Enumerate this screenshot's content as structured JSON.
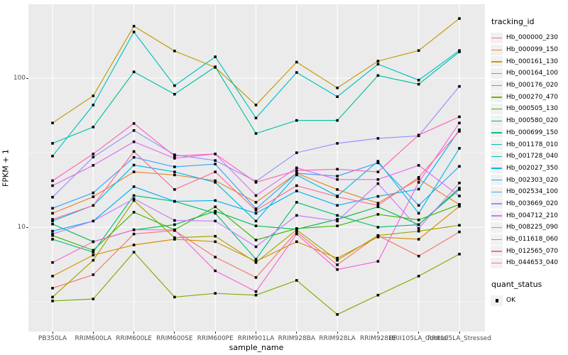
{
  "figure": {
    "panel_background": "#EBEBEB",
    "grid_color": "#FFFFFF",
    "axis_text_color": "#4D4D4D",
    "marker_color": "#000000"
  },
  "axes": {
    "x_title": "sample_name",
    "y_title": "FPKM + 1",
    "y_scale": "log10",
    "y_major_ticks": [
      {
        "label": "100",
        "value": 100
      },
      {
        "label": "10",
        "value": 10
      }
    ],
    "y_minor_breaks": [
      316.23,
      31.62,
      3.162
    ]
  },
  "legend": {
    "tracking_title": "tracking_id",
    "quant_title": "quant_status",
    "quant_items": [
      {
        "label": "OK",
        "marker": "black-square"
      }
    ]
  },
  "chart_data": {
    "type": "line",
    "title": "",
    "xlabel": "sample_name",
    "ylabel": "FPKM + 1",
    "y_scale": "log10",
    "ylim": [
      2,
      313
    ],
    "grid": true,
    "legend_position": "right",
    "marker": "black-square (quant_status OK)",
    "categories": [
      "PB350LA",
      "RRIM600LA",
      "RRIM600LE",
      "RRIM600SE",
      "RRIM600PE",
      "RRIM901LA",
      "RRIM928BA",
      "RRIM928LA",
      "RRIM928LE",
      "RRII105LA_Control",
      "RRII105LA_Stressed"
    ],
    "series": [
      {
        "name": "Hb_000000_230",
        "color": "#F8766D",
        "values": [
          3.9,
          4.8,
          9.0,
          9.5,
          6.3,
          4.6,
          9.3,
          5.6,
          8.8,
          6.4,
          9.3
        ]
      },
      {
        "name": "Hb_000099_150",
        "color": "#EA8331",
        "values": [
          12.4,
          16.0,
          23.5,
          22.4,
          20.5,
          14.7,
          23.0,
          17.9,
          14.5,
          21.0,
          14.2
        ]
      },
      {
        "name": "Hb_000161_130",
        "color": "#D89000",
        "values": [
          4.7,
          6.5,
          7.6,
          8.3,
          8.0,
          5.9,
          8.0,
          6.2,
          8.6,
          8.3,
          13.8
        ]
      },
      {
        "name": "Hb_000164_100",
        "color": "#C09B00",
        "values": [
          50,
          76,
          223,
          152,
          118,
          66,
          128,
          86,
          130,
          153,
          251
        ]
      },
      {
        "name": "Hb_000176_020",
        "color": "#A3A500",
        "values": [
          3.4,
          6.0,
          15.1,
          8.5,
          8.7,
          5.8,
          9.6,
          6.0,
          8.8,
          9.4,
          10.3
        ]
      },
      {
        "name": "Hb_000270_470",
        "color": "#7CAE00",
        "values": [
          3.2,
          3.3,
          6.8,
          3.4,
          3.6,
          3.5,
          4.4,
          2.6,
          3.5,
          4.7,
          6.6
        ]
      },
      {
        "name": "Hb_000505_130",
        "color": "#39B600",
        "values": [
          8.8,
          7.0,
          12.6,
          9.6,
          13.7,
          8.2,
          9.8,
          10.2,
          12.2,
          11.2,
          14.2
        ]
      },
      {
        "name": "Hb_000580_020",
        "color": "#00BB4E",
        "values": [
          10.5,
          8.0,
          9.6,
          10.4,
          12.8,
          10.2,
          9.7,
          11.3,
          13.7,
          10.4,
          18.3
        ]
      },
      {
        "name": "Hb_000699_150",
        "color": "#00BF7D",
        "values": [
          8.3,
          6.8,
          16.3,
          14.9,
          12.4,
          6.1,
          14.7,
          12.0,
          10.0,
          10.4,
          17.9
        ]
      },
      {
        "name": "Hb_001178_010",
        "color": "#00C1A3",
        "values": [
          36.5,
          47,
          110,
          78,
          119,
          42.5,
          52,
          52,
          104,
          91,
          150
        ]
      },
      {
        "name": "Hb_001728_040",
        "color": "#00BFC4",
        "values": [
          30,
          66,
          204,
          89,
          139,
          54,
          109,
          75,
          124,
          97,
          153
        ]
      },
      {
        "name": "Hb_002027_350",
        "color": "#00BAE0",
        "values": [
          11.0,
          14.0,
          26.1,
          23.5,
          20.0,
          11.0,
          22.4,
          16.2,
          27.7,
          12.4,
          33.8
        ]
      },
      {
        "name": "Hb_002303_020",
        "color": "#00B0F6",
        "values": [
          9.4,
          11.0,
          18.7,
          14.9,
          15.1,
          12.4,
          17.5,
          14.0,
          16.1,
          18.0,
          45.0
        ]
      },
      {
        "name": "Hb_002534_100",
        "color": "#35A2FF",
        "values": [
          13.4,
          17.0,
          29.4,
          25.4,
          26.5,
          13.3,
          23.0,
          22.0,
          27.0,
          14.0,
          25.6
        ]
      },
      {
        "name": "Hb_003669_020",
        "color": "#9590FF",
        "values": [
          15.9,
          29.5,
          44.5,
          30.6,
          28.0,
          20.3,
          31.6,
          36.5,
          39.4,
          41.0,
          88.0
        ]
      },
      {
        "name": "Hb_004712_210",
        "color": "#C77CFF",
        "values": [
          9.0,
          11.0,
          15.5,
          11.1,
          11.0,
          7.4,
          12.0,
          11.0,
          19.6,
          9.8,
          19.8
        ]
      },
      {
        "name": "Hb_008225_090",
        "color": "#E76BF3",
        "values": [
          19.0,
          26.0,
          37.4,
          29.0,
          31.0,
          16.3,
          25.0,
          20.9,
          20.9,
          26.0,
          16.2
        ]
      },
      {
        "name": "Hb_011618_060",
        "color": "#FA62DB",
        "values": [
          5.8,
          8.0,
          9.6,
          9.6,
          5.1,
          3.7,
          9.0,
          5.2,
          5.9,
          20.0,
          50.0
        ]
      },
      {
        "name": "Hb_012565_070",
        "color": "#FF62BC",
        "values": [
          20.5,
          31.0,
          49.6,
          30.0,
          31.0,
          20.0,
          24.0,
          24.5,
          23.5,
          41.5,
          55.0
        ]
      },
      {
        "name": "Hb_044653_040",
        "color": "#FF6A98",
        "values": [
          11.3,
          14.0,
          32.2,
          17.9,
          23.5,
          13.0,
          19.0,
          16.0,
          14.0,
          21.6,
          44.0
        ]
      }
    ]
  }
}
